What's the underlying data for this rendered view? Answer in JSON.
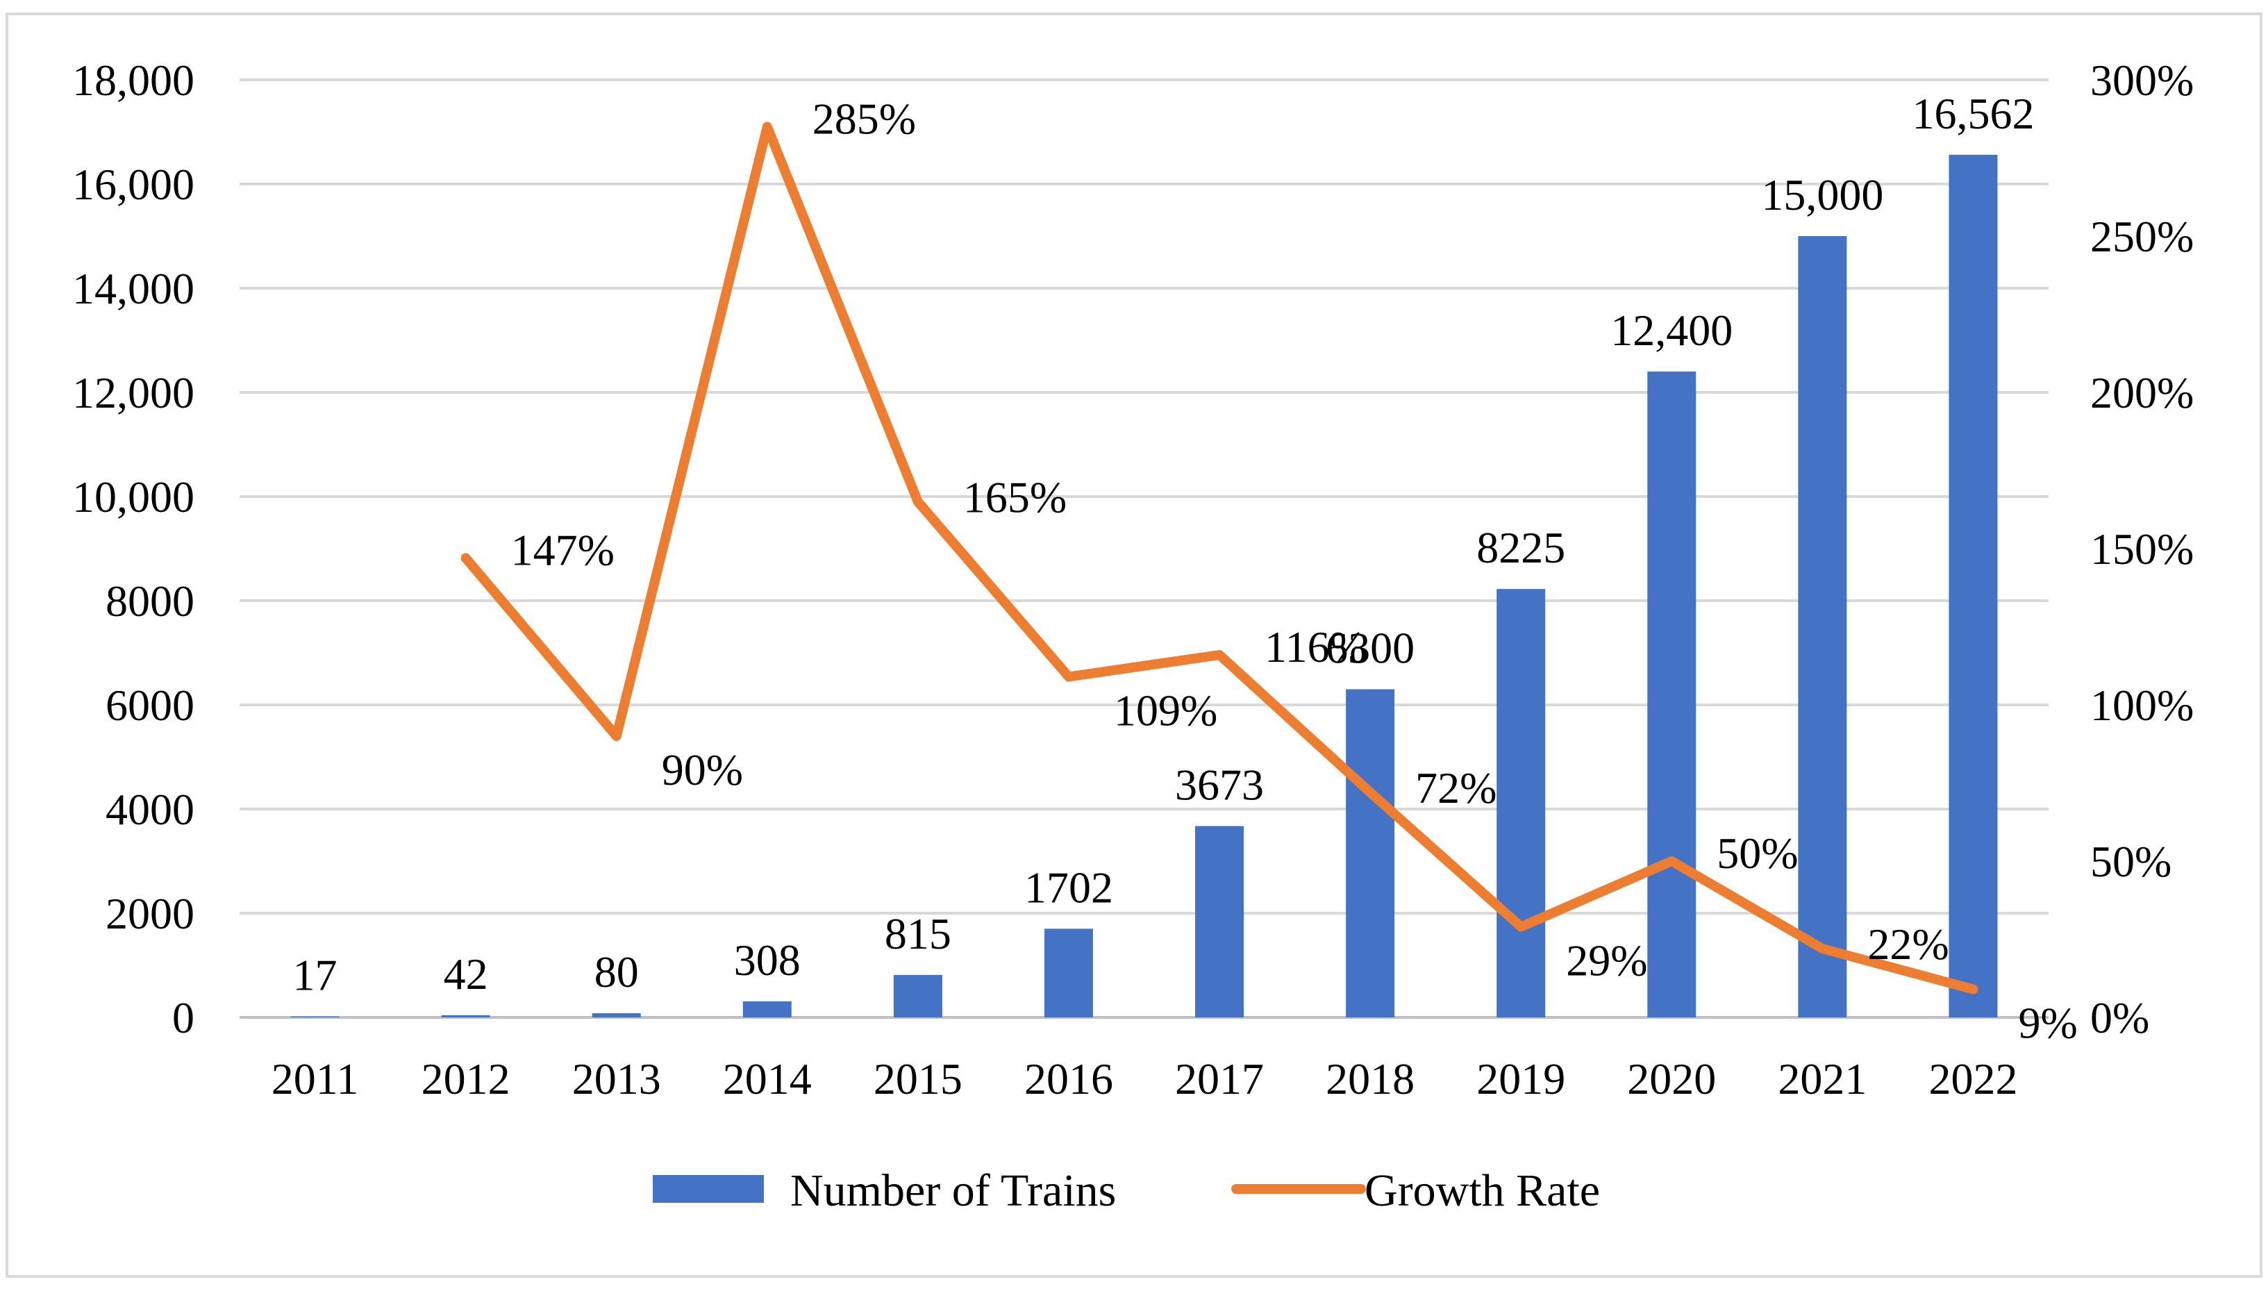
{
  "chart_data": {
    "type": "bar+line",
    "categories": [
      "2011",
      "2012",
      "2013",
      "2014",
      "2015",
      "2016",
      "2017",
      "2018",
      "2019",
      "2020",
      "2021",
      "2022"
    ],
    "series": [
      {
        "name": "Number of Trains",
        "type": "bar",
        "axis": "left",
        "color": "#4472C4",
        "values": [
          17,
          42,
          80,
          308,
          815,
          1702,
          3673,
          6300,
          8225,
          12400,
          15000,
          16562
        ],
        "labels": [
          "17",
          "42",
          "80",
          "308",
          "815",
          "1702",
          "3673",
          "6300",
          "8225",
          "12,400",
          "15,000",
          "16,562"
        ]
      },
      {
        "name": "Growth Rate",
        "type": "line",
        "axis": "right",
        "color": "#ED7D31",
        "values": [
          null,
          147,
          90,
          285,
          165,
          109,
          116,
          72,
          29,
          50,
          22,
          9
        ],
        "labels": [
          null,
          "147%",
          "90%",
          "285%",
          "165%",
          "109%",
          "116%",
          "72%",
          "29%",
          "50%",
          "22%",
          "9%"
        ]
      }
    ],
    "y_left": {
      "min": 0,
      "max": 18000,
      "ticks": [
        0,
        2000,
        4000,
        6000,
        8000,
        10000,
        12000,
        14000,
        16000,
        18000
      ],
      "tick_labels": [
        "0",
        "2000",
        "4000",
        "6000",
        "8000",
        "10,000",
        "12,000",
        "14,000",
        "16,000",
        "18,000"
      ]
    },
    "y_right": {
      "min": 0,
      "max": 300,
      "ticks": [
        0,
        50,
        100,
        150,
        200,
        250,
        300
      ],
      "tick_labels": [
        "0%",
        "50%",
        "100%",
        "150%",
        "200%",
        "250%",
        "300%"
      ]
    },
    "grid": true,
    "legend_position": "bottom",
    "title": "",
    "xlabel": "",
    "ylabel": ""
  }
}
